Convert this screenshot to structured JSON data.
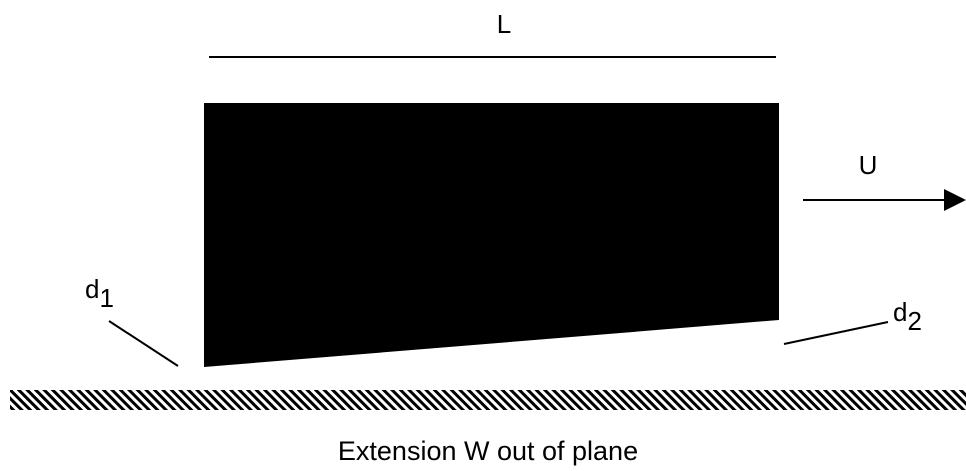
{
  "labels": {
    "length": "L",
    "velocity": "U",
    "gap_inlet_base": "d",
    "gap_inlet_sub": "1",
    "gap_outlet_base": "d",
    "gap_outlet_sub": "2",
    "caption": "Extension W out of plane"
  },
  "colors": {
    "ink": "#000000",
    "background": "#ffffff"
  }
}
